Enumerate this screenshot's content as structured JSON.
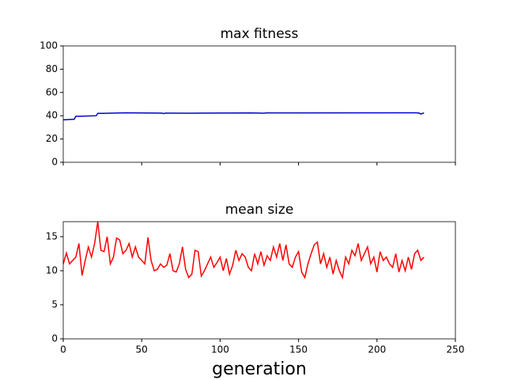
{
  "chart_data": [
    {
      "type": "line",
      "title": "max fitness",
      "x": [
        0,
        7,
        8,
        10,
        21,
        22,
        40,
        63,
        64,
        65,
        80,
        120,
        128,
        129,
        150,
        225,
        227,
        228,
        230
      ],
      "series": [
        {
          "color": "#0000cc",
          "values": [
            36.5,
            37,
            39.5,
            39.5,
            40,
            42,
            42.5,
            42.3,
            41.8,
            42.3,
            42.2,
            42.4,
            42.2,
            42.4,
            42.4,
            42.5,
            42.3,
            41.5,
            42.5
          ]
        }
      ],
      "xlim": [
        0,
        250
      ],
      "xticks": [
        0,
        50,
        100,
        150,
        200,
        250
      ],
      "ylim": [
        0,
        100
      ],
      "yticks": [
        0,
        20,
        40,
        60,
        80,
        100
      ]
    },
    {
      "type": "line",
      "title": "mean size",
      "xlabel": "generation",
      "x": [
        0,
        2,
        4,
        6,
        8,
        10,
        12,
        14,
        16,
        18,
        20,
        22,
        24,
        26,
        28,
        30,
        32,
        34,
        36,
        38,
        40,
        42,
        44,
        46,
        48,
        50,
        52,
        54,
        56,
        58,
        60,
        62,
        64,
        66,
        68,
        70,
        72,
        74,
        76,
        78,
        80,
        82,
        84,
        86,
        88,
        90,
        92,
        94,
        96,
        98,
        100,
        102,
        104,
        106,
        108,
        110,
        112,
        114,
        116,
        118,
        120,
        122,
        124,
        126,
        128,
        130,
        132,
        134,
        136,
        138,
        140,
        142,
        144,
        146,
        148,
        150,
        152,
        154,
        156,
        158,
        160,
        162,
        164,
        166,
        168,
        170,
        172,
        174,
        176,
        178,
        180,
        182,
        184,
        186,
        188,
        190,
        192,
        194,
        196,
        198,
        200,
        202,
        204,
        206,
        208,
        210,
        212,
        214,
        216,
        218,
        220,
        222,
        224,
        226,
        228,
        230
      ],
      "series": [
        {
          "color": "#ff0000",
          "values": [
            11,
            12.6,
            11,
            11.5,
            12,
            14,
            9.3,
            11.5,
            13.5,
            12,
            14,
            17.2,
            13,
            12.8,
            15,
            11,
            12,
            14.8,
            14.5,
            12.5,
            13,
            14,
            12,
            13.5,
            12,
            11.5,
            11,
            14.9,
            11.5,
            10,
            10.2,
            11,
            10.5,
            10.8,
            12.5,
            10,
            9.8,
            11,
            13.5,
            10.2,
            9,
            9.5,
            13,
            12.8,
            9.2,
            10,
            11,
            12,
            10.5,
            11.2,
            12,
            10,
            11.8,
            9.5,
            10.8,
            13,
            11.5,
            12.5,
            12,
            10.5,
            10,
            12.5,
            11,
            12.8,
            10.8,
            12.2,
            11.5,
            13.5,
            12,
            14,
            11.5,
            13.8,
            11,
            10.5,
            12,
            12.8,
            9.8,
            9,
            11,
            12.5,
            13.8,
            14.2,
            11,
            12.5,
            10.5,
            12,
            9.5,
            11.5,
            10,
            9,
            12,
            11,
            13,
            12.2,
            14,
            11.5,
            12.5,
            13.5,
            11,
            12,
            9.8,
            12.8,
            11.5,
            12,
            11,
            10.5,
            12.5,
            9.8,
            11.5,
            10,
            12,
            10.2,
            12.5,
            13,
            11.5,
            12
          ]
        }
      ],
      "xlim": [
        0,
        250
      ],
      "xticks": [
        0,
        50,
        100,
        150,
        200,
        250
      ],
      "ylim": [
        0,
        17.2
      ],
      "yticks": [
        0,
        5,
        10,
        15
      ]
    }
  ]
}
